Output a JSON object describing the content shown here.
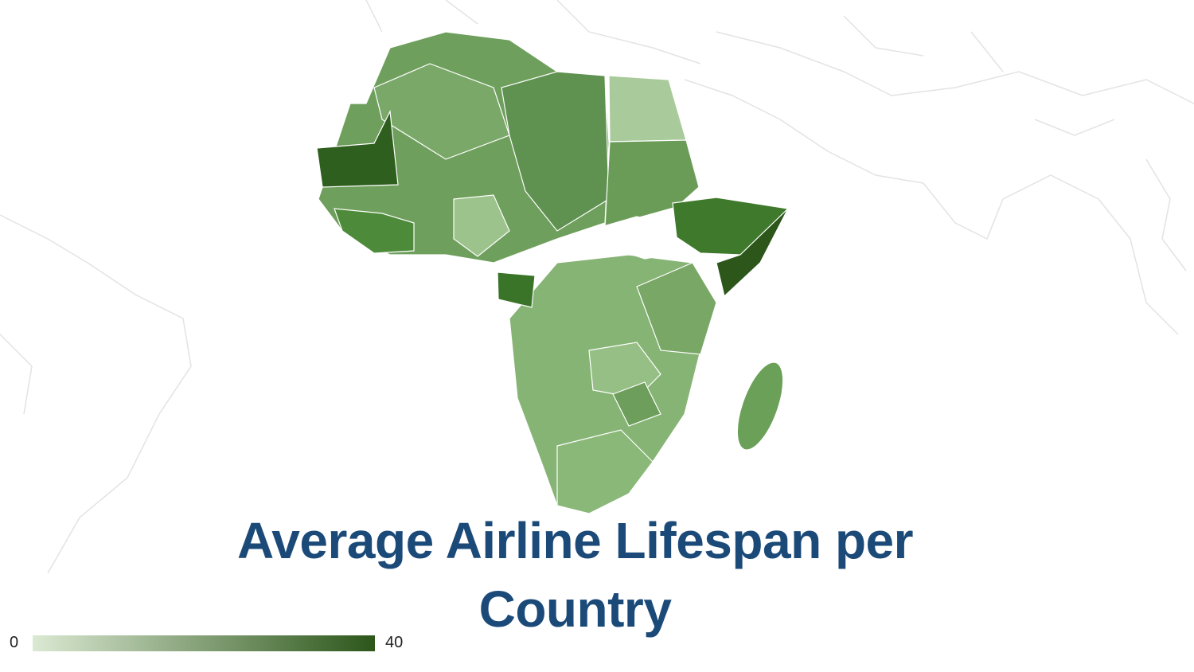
{
  "title": "Average Airline Lifespan per Country",
  "legend": {
    "min": 0,
    "max": 40,
    "min_color": "#dbe9d3",
    "max_color": "#2c561a"
  }
}
